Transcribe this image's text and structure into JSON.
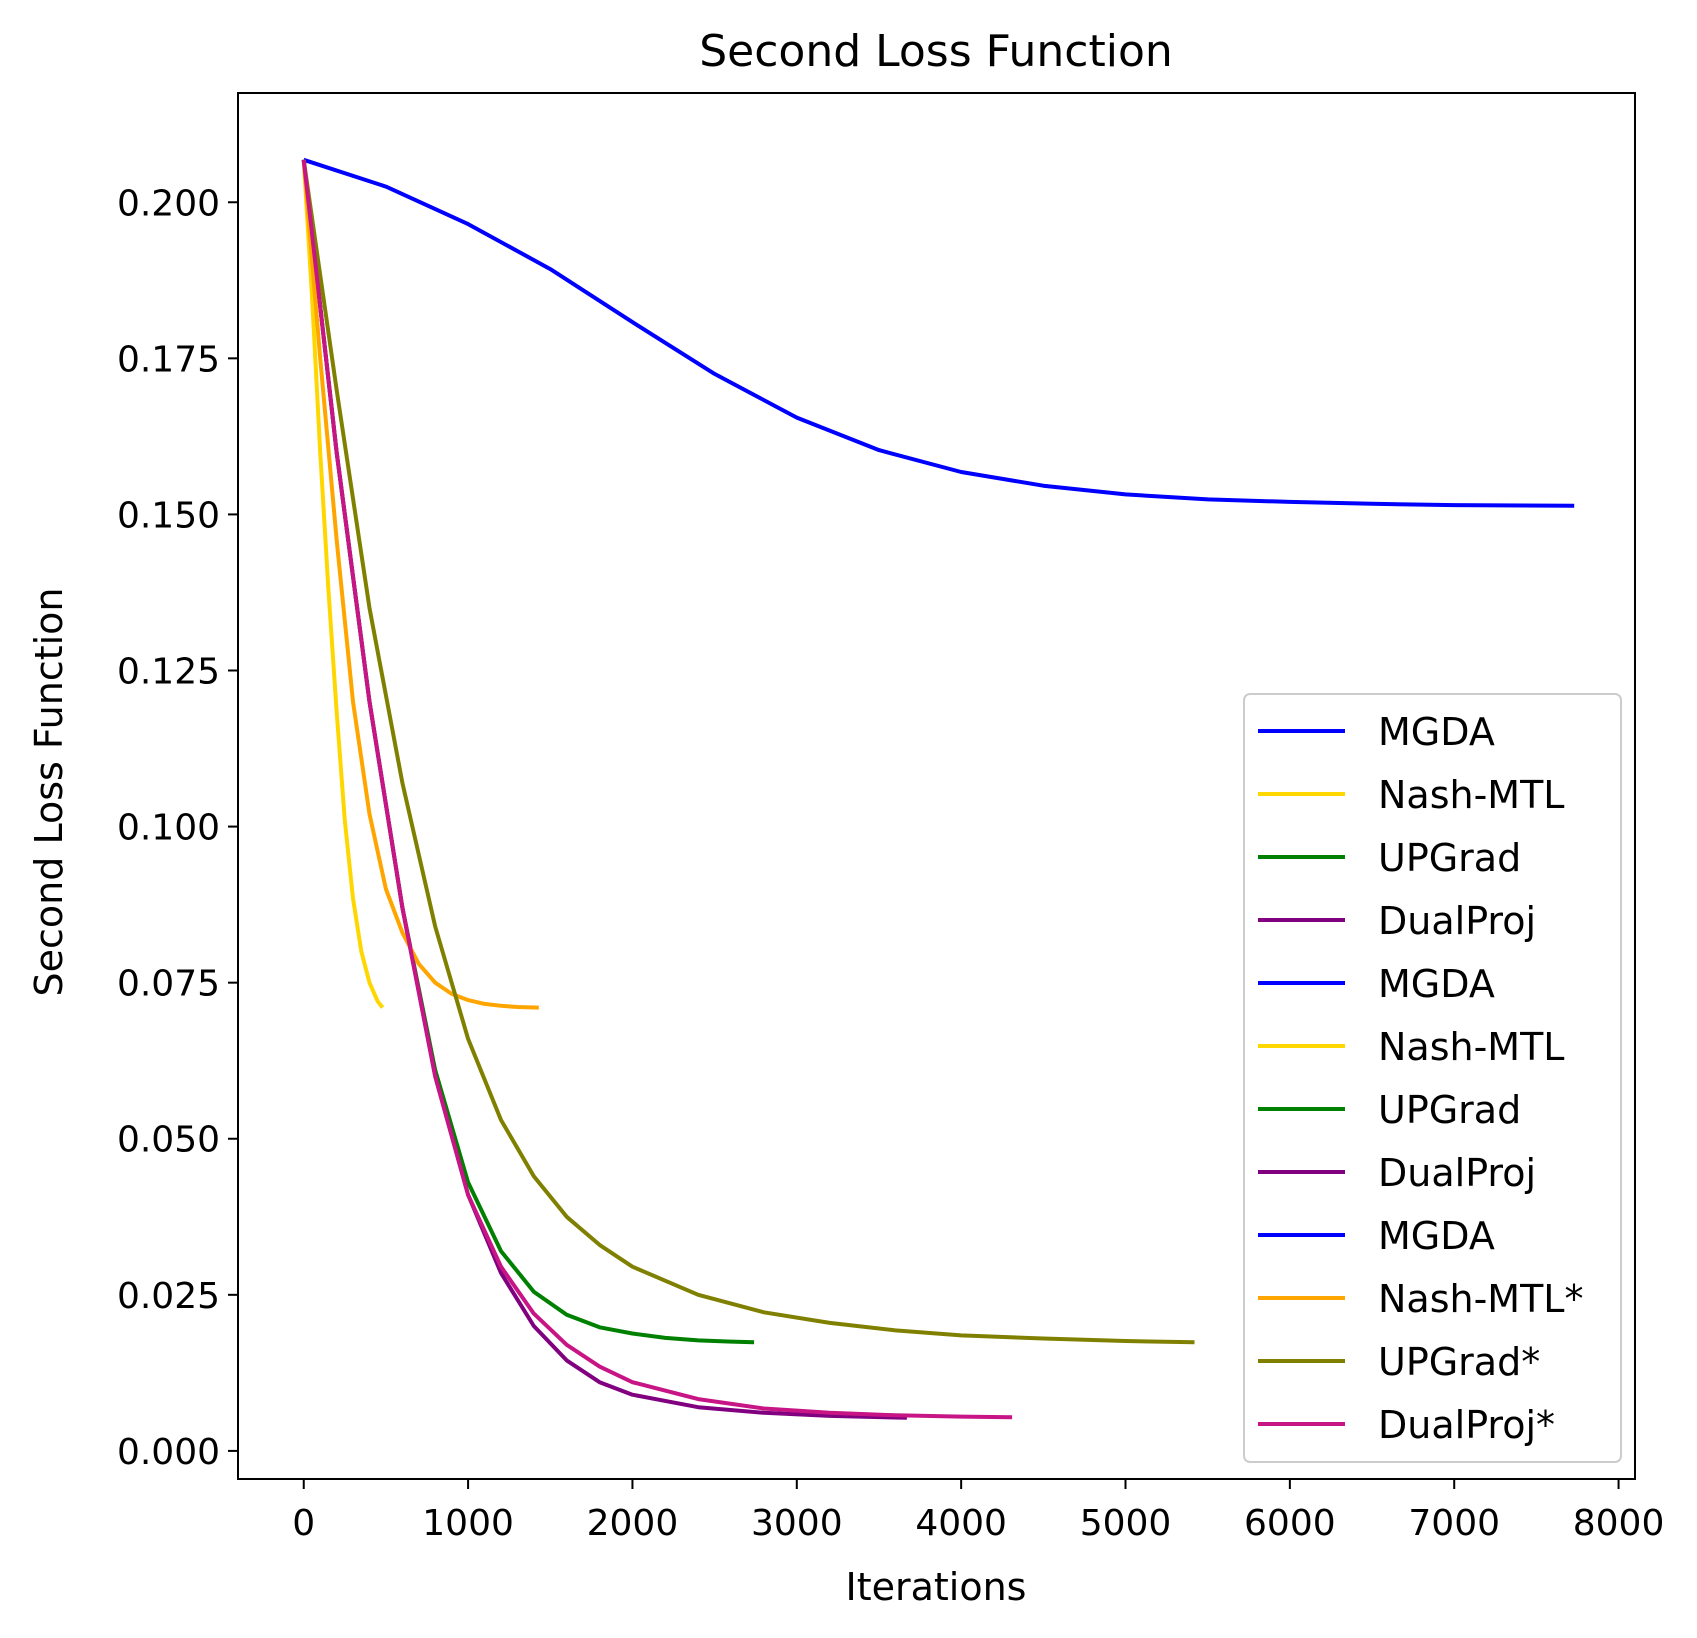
{
  "chart_data": {
    "type": "line",
    "title": "Second Loss Function",
    "xlabel": "Iterations",
    "ylabel": "Second Loss Function",
    "xlim": [
      -400,
      8100
    ],
    "ylim": [
      -0.0045,
      0.2175
    ],
    "xticks": [
      0,
      1000,
      2000,
      3000,
      4000,
      5000,
      6000,
      7000,
      8000
    ],
    "xtick_labels": [
      "0",
      "1000",
      "2000",
      "3000",
      "4000",
      "5000",
      "6000",
      "7000",
      "8000"
    ],
    "yticks": [
      0.0,
      0.025,
      0.05,
      0.075,
      0.1,
      0.125,
      0.15,
      0.175,
      0.2
    ],
    "ytick_labels": [
      "0.000",
      "0.025",
      "0.050",
      "0.075",
      "0.100",
      "0.125",
      "0.150",
      "0.175",
      "0.200"
    ],
    "grid": false,
    "legend_position": "lower-right",
    "series": [
      {
        "name": "MGDA",
        "color": "#0000ff",
        "in_legend": true,
        "points": [
          [
            0,
            0.2068
          ],
          [
            500,
            0.2025
          ],
          [
            1000,
            0.1965
          ],
          [
            1500,
            0.1893
          ],
          [
            2000,
            0.1808
          ],
          [
            2500,
            0.1725
          ],
          [
            3000,
            0.1655
          ],
          [
            3500,
            0.1603
          ],
          [
            4000,
            0.1568
          ],
          [
            4500,
            0.1546
          ],
          [
            5000,
            0.1532
          ],
          [
            5500,
            0.1524
          ],
          [
            6000,
            0.152
          ],
          [
            6500,
            0.1517
          ],
          [
            7000,
            0.1515
          ],
          [
            7730,
            0.1514
          ]
        ]
      },
      {
        "name": "Nash-MTL",
        "color": "#ffd700",
        "in_legend": true,
        "points": [
          [
            0,
            0.2068
          ],
          [
            50,
            0.185
          ],
          [
            100,
            0.16
          ],
          [
            150,
            0.138
          ],
          [
            200,
            0.1185
          ],
          [
            250,
            0.101
          ],
          [
            300,
            0.0885
          ],
          [
            350,
            0.08
          ],
          [
            400,
            0.075
          ],
          [
            450,
            0.072
          ],
          [
            480,
            0.071
          ]
        ]
      },
      {
        "name": "UPGrad",
        "color": "#008000",
        "in_legend": true,
        "points": [
          [
            0,
            0.2068
          ],
          [
            200,
            0.16
          ],
          [
            400,
            0.12
          ],
          [
            600,
            0.087
          ],
          [
            800,
            0.061
          ],
          [
            1000,
            0.043
          ],
          [
            1200,
            0.032
          ],
          [
            1400,
            0.0255
          ],
          [
            1600,
            0.0218
          ],
          [
            1800,
            0.0198
          ],
          [
            2000,
            0.0188
          ],
          [
            2200,
            0.0181
          ],
          [
            2400,
            0.0177
          ],
          [
            2600,
            0.0175
          ],
          [
            2740,
            0.0174
          ]
        ]
      },
      {
        "name": "DualProj",
        "color": "#800080",
        "in_legend": true,
        "points": [
          [
            0,
            0.2068
          ],
          [
            200,
            0.16
          ],
          [
            400,
            0.12
          ],
          [
            600,
            0.087
          ],
          [
            800,
            0.06
          ],
          [
            1000,
            0.041
          ],
          [
            1200,
            0.0285
          ],
          [
            1400,
            0.02
          ],
          [
            1600,
            0.0145
          ],
          [
            1800,
            0.011
          ],
          [
            2000,
            0.009
          ],
          [
            2400,
            0.007
          ],
          [
            2800,
            0.0061
          ],
          [
            3200,
            0.0056
          ],
          [
            3670,
            0.0053
          ]
        ]
      },
      {
        "name": "MGDA",
        "color": "#0000ff",
        "in_legend": true,
        "points": []
      },
      {
        "name": "Nash-MTL",
        "color": "#ffd700",
        "in_legend": true,
        "points": []
      },
      {
        "name": "UPGrad",
        "color": "#008000",
        "in_legend": true,
        "points": []
      },
      {
        "name": "DualProj",
        "color": "#800080",
        "in_legend": true,
        "points": []
      },
      {
        "name": "MGDA",
        "color": "#0000ff",
        "in_legend": true,
        "points": []
      },
      {
        "name": "Nash-MTL*",
        "color": "#ffa500",
        "in_legend": true,
        "points": [
          [
            0,
            0.2068
          ],
          [
            100,
            0.175
          ],
          [
            200,
            0.146
          ],
          [
            300,
            0.12
          ],
          [
            400,
            0.102
          ],
          [
            500,
            0.09
          ],
          [
            600,
            0.083
          ],
          [
            700,
            0.078
          ],
          [
            800,
            0.075
          ],
          [
            900,
            0.0732
          ],
          [
            1000,
            0.0722
          ],
          [
            1100,
            0.0716
          ],
          [
            1200,
            0.0713
          ],
          [
            1300,
            0.0711
          ],
          [
            1430,
            0.071
          ]
        ]
      },
      {
        "name": "UPGrad*",
        "color": "#808000",
        "in_legend": true,
        "points": [
          [
            0,
            0.2068
          ],
          [
            200,
            0.17
          ],
          [
            400,
            0.135
          ],
          [
            600,
            0.107
          ],
          [
            800,
            0.084
          ],
          [
            1000,
            0.066
          ],
          [
            1200,
            0.053
          ],
          [
            1400,
            0.044
          ],
          [
            1600,
            0.0375
          ],
          [
            1800,
            0.033
          ],
          [
            2000,
            0.0295
          ],
          [
            2400,
            0.025
          ],
          [
            2800,
            0.0222
          ],
          [
            3200,
            0.0205
          ],
          [
            3600,
            0.0193
          ],
          [
            4000,
            0.0185
          ],
          [
            4500,
            0.018
          ],
          [
            5000,
            0.0176
          ],
          [
            5420,
            0.0174
          ]
        ]
      },
      {
        "name": "DualProj*",
        "color": "#c71585",
        "in_legend": true,
        "points": [
          [
            0,
            0.2068
          ],
          [
            200,
            0.16
          ],
          [
            400,
            0.12
          ],
          [
            600,
            0.087
          ],
          [
            800,
            0.06
          ],
          [
            1000,
            0.041
          ],
          [
            1200,
            0.0295
          ],
          [
            1400,
            0.022
          ],
          [
            1600,
            0.017
          ],
          [
            1800,
            0.0135
          ],
          [
            2000,
            0.011
          ],
          [
            2400,
            0.0083
          ],
          [
            2800,
            0.0068
          ],
          [
            3200,
            0.0061
          ],
          [
            3600,
            0.0057
          ],
          [
            4000,
            0.0055
          ],
          [
            4310,
            0.0054
          ]
        ]
      }
    ]
  }
}
